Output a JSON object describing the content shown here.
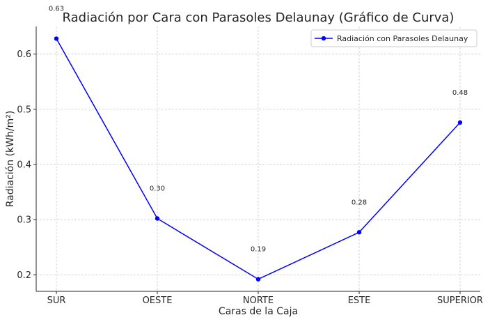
{
  "chart_data": {
    "type": "line",
    "title": "Radiación por Cara con Parasoles Delaunay (Gráfico de Curva)",
    "xlabel": "Caras de la Caja",
    "ylabel": "Radiación (kWh/m²)",
    "categories": [
      "SUR",
      "OESTE",
      "NORTE",
      "ESTE",
      "SUPERIOR"
    ],
    "series": [
      {
        "name": "Radiación con Parasoles Delaunay",
        "values": [
          0.628,
          0.302,
          0.192,
          0.277,
          0.476
        ],
        "data_labels": [
          "0.63",
          "0.30",
          "0.19",
          "0.28",
          "0.48"
        ],
        "color": "#0000ff"
      }
    ],
    "ylim": [
      0.17,
      0.65
    ],
    "yticks": [
      0.2,
      0.3,
      0.4,
      0.5,
      0.6
    ],
    "ytick_labels": [
      "0.2",
      "0.3",
      "0.4",
      "0.5",
      "0.6"
    ],
    "grid": true,
    "legend_position": "top-right"
  }
}
